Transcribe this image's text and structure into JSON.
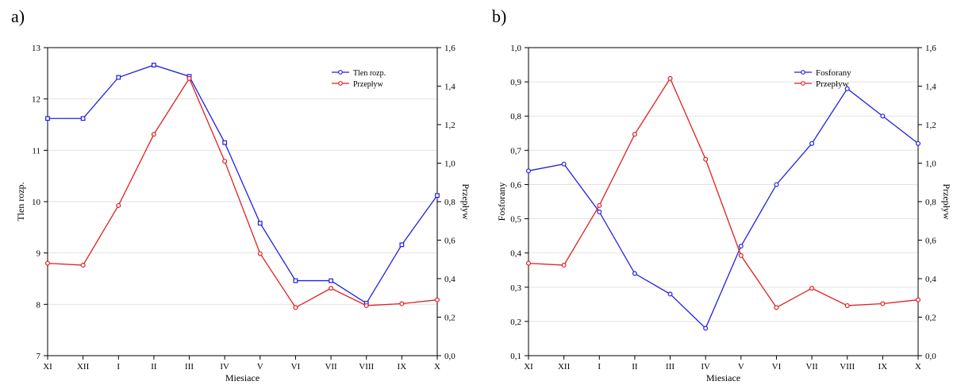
{
  "panels": [
    {
      "tag": "a)"
    },
    {
      "tag": "b)"
    }
  ],
  "chart_data": [
    {
      "type": "line",
      "panel_tag": "a)",
      "categories": [
        "XI",
        "XII",
        "I",
        "II",
        "III",
        "IV",
        "V",
        "VI",
        "VII",
        "VIII",
        "IX",
        "X"
      ],
      "xlabel": "Miesiace",
      "ylabel_left": "Tlen rozp.",
      "ylabel_right": "Przepływ",
      "ylim_left": [
        7,
        13
      ],
      "ylim_right": [
        0.0,
        1.6
      ],
      "yticks_left": [
        "7",
        "8",
        "9",
        "10",
        "11",
        "12",
        "13"
      ],
      "yticks_right": [
        "0,0",
        "0,2",
        "0,4",
        "0,6",
        "0,8",
        "1,0",
        "1,2",
        "1,4",
        "1,6"
      ],
      "legend_position": "top-right",
      "grid": true,
      "series": [
        {
          "name": "Tlen rozp.",
          "axis": "left",
          "color": "#2020e0",
          "values": [
            11.62,
            11.62,
            12.42,
            12.66,
            12.44,
            11.15,
            9.58,
            8.46,
            8.46,
            8.02,
            9.16,
            10.12
          ]
        },
        {
          "name": "Przepływ",
          "axis": "right",
          "color": "#e02020",
          "values": [
            0.48,
            0.47,
            0.78,
            1.15,
            1.44,
            1.01,
            0.53,
            0.25,
            0.35,
            0.26,
            0.27,
            0.29
          ]
        }
      ]
    },
    {
      "type": "line",
      "panel_tag": "b)",
      "categories": [
        "XI",
        "XII",
        "I",
        "II",
        "III",
        "IV",
        "V",
        "VI",
        "VII",
        "VIII",
        "IX",
        "X"
      ],
      "xlabel": "Miesiace",
      "ylabel_left": "Fosforany",
      "ylabel_right": "Przepływ",
      "ylim_left": [
        0.1,
        1.0
      ],
      "ylim_right": [
        0.0,
        1.6
      ],
      "yticks_left": [
        "0,1",
        "0,2",
        "0,3",
        "0,4",
        "0,5",
        "0,6",
        "0,7",
        "0,8",
        "0,9",
        "1,0"
      ],
      "yticks_right": [
        "0,0",
        "0,2",
        "0,4",
        "0,6",
        "0,8",
        "1,0",
        "1,2",
        "1,4",
        "1,6"
      ],
      "legend_position": "top-right",
      "grid": true,
      "series": [
        {
          "name": "Fosforany",
          "axis": "left",
          "color": "#2020e0",
          "values": [
            0.64,
            0.66,
            0.52,
            0.34,
            0.28,
            0.18,
            0.42,
            0.6,
            0.72,
            0.88,
            0.8,
            0.72
          ]
        },
        {
          "name": "Przepływ",
          "axis": "right",
          "color": "#e02020",
          "values": [
            0.48,
            0.47,
            0.78,
            1.15,
            1.44,
            1.02,
            0.52,
            0.25,
            0.35,
            0.26,
            0.27,
            0.29
          ]
        }
      ]
    }
  ]
}
